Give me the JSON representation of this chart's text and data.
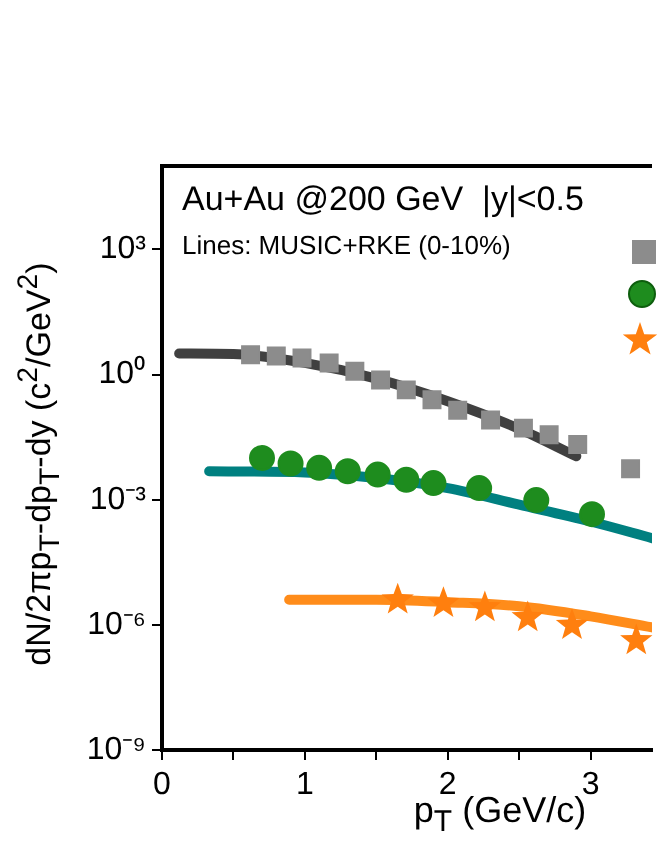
{
  "chart_data": {
    "type": "scatter",
    "xlabel": "p$_{T}$ (GeV/c)",
    "ylabel": "dN/2πp$_{T}$-dp$_{T}$-dy (c$^{2}$/GeV$^{2}$)",
    "log": "y",
    "grid": false,
    "legend": false,
    "annotations": [
      "Au+Au @200 GeV  |y|<0.5",
      "Lines: MUSIC+RKE (0-10%)"
    ],
    "xlim": [
      0,
      3.43
    ],
    "xticks": [
      0,
      {
        "value": 0.5,
        "label": null
      },
      1,
      {
        "value": 1.5,
        "label": null
      },
      2,
      {
        "value": 2.5,
        "label": null
      },
      3
    ],
    "ylim": [
      1e-09,
      100000.0
    ],
    "yticks": [
      {
        "value": 1e-09,
        "label": "10⁻⁹"
      },
      {
        "value": 1e-06,
        "label": "10⁻⁶"
      },
      {
        "value": 0.001,
        "label": "10⁻³"
      },
      {
        "value": 1,
        "label": "10⁰"
      },
      {
        "value": 1000,
        "label": "10³"
      }
    ],
    "series": [
      {
        "type": "scatter",
        "marker": "square",
        "color": "#8c8c8c",
        "x": [
          0.62,
          0.8,
          0.98,
          1.17,
          1.35,
          1.53,
          1.71,
          1.89,
          2.07,
          2.3,
          2.53,
          2.71,
          2.91,
          3.28
        ],
        "values": [
          3.0,
          2.8,
          2.5,
          1.9,
          1.2,
          0.74,
          0.43,
          0.25,
          0.14,
          0.081,
          0.052,
          0.036,
          0.021,
          0.0055
        ]
      },
      {
        "type": "line",
        "marker": "none",
        "color": "#404040",
        "x": [
          0.12,
          0.5,
          1.0,
          1.5,
          2.0,
          2.5,
          2.9
        ],
        "values": [
          3.2,
          3.1,
          1.9,
          0.8,
          0.23,
          0.05,
          0.011
        ]
      },
      {
        "type": "scatter",
        "marker": "circle",
        "color": "#1e8c1e",
        "x": [
          0.7,
          0.9,
          1.1,
          1.3,
          1.51,
          1.71,
          1.9,
          2.22,
          2.62,
          3.01
        ],
        "values": [
          0.01,
          0.0074,
          0.0058,
          0.0048,
          0.004,
          0.003,
          0.0025,
          0.0019,
          0.00098,
          0.00045
        ]
      },
      {
        "type": "line",
        "marker": "none",
        "color": "#008080",
        "x": [
          0.33,
          1.0,
          1.5,
          2.0,
          2.5,
          3.0,
          3.43
        ],
        "values": [
          0.0048,
          0.0045,
          0.0033,
          0.0019,
          0.00076,
          0.0003,
          0.00012
        ]
      },
      {
        "type": "scatter",
        "marker": "star",
        "color": "#ff7f0e",
        "x": [
          1.65,
          1.97,
          2.26,
          2.56,
          2.87,
          3.32
        ],
        "values": [
          4e-06,
          3.3e-06,
          2.6e-06,
          1.5e-06,
          9.8e-07,
          4.2e-07
        ]
      },
      {
        "type": "line",
        "marker": "none",
        "color": "#ff8c1a",
        "x": [
          0.89,
          1.5,
          2.0,
          2.5,
          3.0,
          3.43
        ],
        "values": [
          4e-06,
          4e-06,
          3.5e-06,
          2.8e-06,
          1.6e-06,
          8.7e-07
        ]
      }
    ]
  }
}
